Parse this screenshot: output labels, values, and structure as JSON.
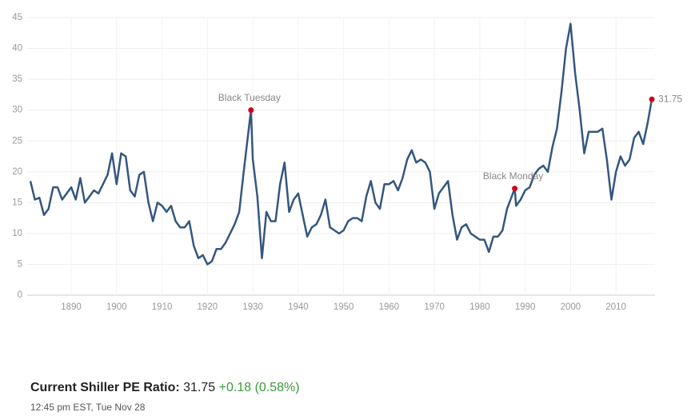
{
  "chart_data": {
    "type": "line",
    "x": [
      1881,
      1882,
      1883,
      1884,
      1885,
      1886,
      1887,
      1888,
      1889,
      1890,
      1891,
      1892,
      1893,
      1894,
      1895,
      1896,
      1897,
      1898,
      1899,
      1900,
      1901,
      1902,
      1903,
      1904,
      1905,
      1906,
      1907,
      1908,
      1909,
      1910,
      1911,
      1912,
      1913,
      1914,
      1915,
      1916,
      1917,
      1918,
      1919,
      1920,
      1921,
      1922,
      1923,
      1924,
      1925,
      1926,
      1927,
      1928,
      1929.6,
      1930,
      1931,
      1932,
      1933,
      1934,
      1935,
      1936,
      1937,
      1938,
      1939,
      1940,
      1941,
      1942,
      1943,
      1944,
      1945,
      1946,
      1947,
      1948,
      1949,
      1950,
      1951,
      1952,
      1953,
      1954,
      1955,
      1956,
      1957,
      1958,
      1959,
      1960,
      1961,
      1962,
      1963,
      1964,
      1965,
      1966,
      1967,
      1968,
      1969,
      1970,
      1971,
      1972,
      1973,
      1974,
      1975,
      1976,
      1977,
      1978,
      1979,
      1980,
      1981,
      1982,
      1983,
      1984,
      1985,
      1986,
      1987.7,
      1988,
      1989,
      1990,
      1991,
      1992,
      1993,
      1994,
      1995,
      1996,
      1997,
      1998,
      1999,
      2000,
      2001,
      2002,
      2003,
      2004,
      2005,
      2006,
      2007,
      2008,
      2009,
      2010,
      2011,
      2012,
      2013,
      2014,
      2015,
      2016,
      2017,
      2017.9
    ],
    "series": [
      {
        "name": "Shiller PE Ratio",
        "color": "#34577f",
        "values": [
          18.5,
          15.5,
          15.8,
          13,
          14,
          17.5,
          17.5,
          15.5,
          16.5,
          17.5,
          15.5,
          19,
          15,
          16,
          17,
          16.5,
          18,
          19.5,
          23,
          18,
          23,
          22.5,
          17,
          16,
          19.5,
          20,
          15,
          12,
          15,
          14.5,
          13.5,
          14.5,
          12,
          11,
          11,
          12,
          8,
          6,
          6.5,
          5,
          5.5,
          7.5,
          7.5,
          8.5,
          10,
          11.5,
          13.5,
          20,
          30,
          22,
          16,
          6,
          13.5,
          12,
          12,
          18,
          21.5,
          13.5,
          15.5,
          16.5,
          13,
          9.5,
          11,
          11.5,
          13,
          15.5,
          11,
          10.5,
          10,
          10.5,
          12,
          12.5,
          12.5,
          12,
          16,
          18.5,
          15,
          14,
          18,
          18,
          18.5,
          17,
          19,
          22,
          23.5,
          21.5,
          22,
          21.5,
          20,
          14,
          16.5,
          17.5,
          18.5,
          13,
          9,
          11,
          11.5,
          10,
          9.5,
          9,
          9,
          7,
          9.5,
          9.5,
          10.5,
          14,
          17.3,
          14.5,
          15.5,
          17,
          17.5,
          19.5,
          20.5,
          21,
          20,
          24,
          27,
          33,
          40,
          44,
          36,
          30,
          23,
          26.5,
          26.5,
          26.5,
          27,
          22,
          15.5,
          20,
          22.5,
          21,
          22,
          25.5,
          26.5,
          24.5,
          28,
          31.75
        ]
      }
    ],
    "xlim": [
      1880.3,
      2018.6
    ],
    "ylim": [
      0,
      45
    ],
    "xticks": [
      1890,
      1900,
      1910,
      1920,
      1930,
      1940,
      1950,
      1960,
      1970,
      1980,
      1990,
      2000,
      2010
    ],
    "yticks": [
      0,
      5,
      10,
      15,
      20,
      25,
      30,
      35,
      40,
      45
    ],
    "grid": true,
    "highlights": [
      {
        "x": 1929.6,
        "y": 30,
        "label": "Black Tuesday"
      },
      {
        "x": 1987.7,
        "y": 17.3,
        "label": "Black Monday"
      },
      {
        "x": 2017.9,
        "y": 31.75
      }
    ],
    "highlight_color": "#d0021b"
  },
  "footer": {
    "label": "Current Shiller PE Ratio:",
    "value": 31.75,
    "change": "+0.18 (0.58%)",
    "timestamp": "12:45 pm EST, Tue Nov 28"
  }
}
